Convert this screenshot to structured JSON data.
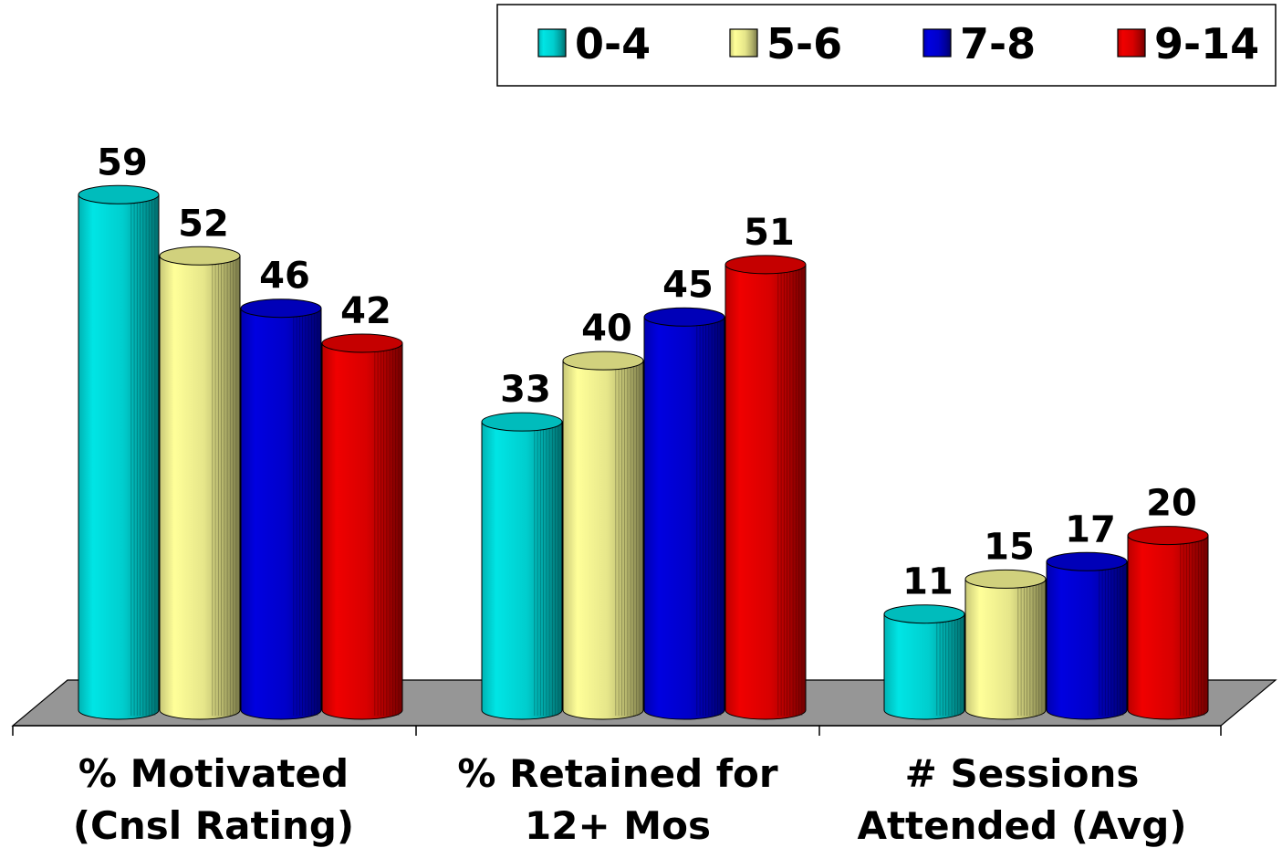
{
  "chart_data": {
    "type": "bar",
    "style": "3d-cylinder",
    "title": "",
    "xlabel": "",
    "ylabel": "",
    "ylim": [
      0,
      63
    ],
    "grid": false,
    "legend_position": "top-right",
    "categories": [
      [
        "% Motivated",
        "(Cnsl Rating)"
      ],
      [
        "% Retained for",
        "12+ Mos"
      ],
      [
        "# Sessions",
        "Attended (Avg)"
      ]
    ],
    "series": [
      {
        "name": "0-4",
        "color": "#00e5e5",
        "values": [
          59,
          33,
          11
        ]
      },
      {
        "name": "5-6",
        "color": "#ffff99",
        "values": [
          52,
          40,
          15
        ]
      },
      {
        "name": "7-8",
        "color": "#0000e0",
        "values": [
          46,
          45,
          17
        ]
      },
      {
        "name": "9-14",
        "color": "#f00000",
        "values": [
          42,
          51,
          20
        ]
      }
    ]
  }
}
